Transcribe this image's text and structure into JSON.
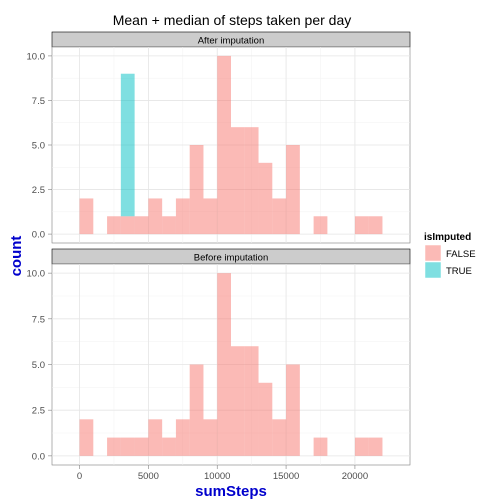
{
  "chart_data": {
    "type": "histogram",
    "title": "Mean + median of steps taken per day",
    "xlabel": "sumSteps",
    "ylabel": "count",
    "xlim": [
      -2000,
      24000
    ],
    "ylim": [
      -0.5,
      10.5
    ],
    "xticks": [
      0,
      5000,
      10000,
      15000,
      20000
    ],
    "xtick_labels": [
      "0",
      "5000",
      "10000",
      "15000",
      "20000"
    ],
    "yticks": [
      0,
      2.5,
      5,
      7.5,
      10
    ],
    "ytick_labels": [
      "0.0",
      "2.5",
      "5.0",
      "7.5",
      "10.0"
    ],
    "grid": true,
    "bin_width": 1000,
    "legend": {
      "title": "isImputed",
      "position": "right",
      "entries": [
        {
          "label": "FALSE",
          "color": "#F8766D"
        },
        {
          "label": "TRUE",
          "color": "#00BFC4"
        }
      ]
    },
    "panels": [
      {
        "label": "After imputation",
        "series": [
          {
            "name": "FALSE",
            "color": "#F8766D",
            "bars": [
              {
                "x0": 0,
                "x1": 1000,
                "count": 2
              },
              {
                "x0": 2000,
                "x1": 3000,
                "count": 1
              },
              {
                "x0": 3000,
                "x1": 4000,
                "count": 1
              },
              {
                "x0": 4000,
                "x1": 5000,
                "count": 1
              },
              {
                "x0": 5000,
                "x1": 6000,
                "count": 2
              },
              {
                "x0": 6000,
                "x1": 7000,
                "count": 1
              },
              {
                "x0": 7000,
                "x1": 8000,
                "count": 2
              },
              {
                "x0": 8000,
                "x1": 9000,
                "count": 5
              },
              {
                "x0": 9000,
                "x1": 10000,
                "count": 2
              },
              {
                "x0": 10000,
                "x1": 11000,
                "count": 10
              },
              {
                "x0": 11000,
                "x1": 12000,
                "count": 6
              },
              {
                "x0": 12000,
                "x1": 13000,
                "count": 6
              },
              {
                "x0": 13000,
                "x1": 14000,
                "count": 4
              },
              {
                "x0": 14000,
                "x1": 15000,
                "count": 2
              },
              {
                "x0": 15000,
                "x1": 16000,
                "count": 5
              },
              {
                "x0": 17000,
                "x1": 18000,
                "count": 1
              },
              {
                "x0": 20000,
                "x1": 21000,
                "count": 1
              },
              {
                "x0": 21000,
                "x1": 22000,
                "count": 1
              }
            ]
          },
          {
            "name": "TRUE",
            "color": "#00BFC4",
            "bars": [
              {
                "x0": 3000,
                "x1": 4000,
                "base": 1,
                "count": 8
              }
            ]
          }
        ]
      },
      {
        "label": "Before imputation",
        "series": [
          {
            "name": "FALSE",
            "color": "#F8766D",
            "bars": [
              {
                "x0": 0,
                "x1": 1000,
                "count": 2
              },
              {
                "x0": 2000,
                "x1": 3000,
                "count": 1
              },
              {
                "x0": 3000,
                "x1": 4000,
                "count": 1
              },
              {
                "x0": 4000,
                "x1": 5000,
                "count": 1
              },
              {
                "x0": 5000,
                "x1": 6000,
                "count": 2
              },
              {
                "x0": 6000,
                "x1": 7000,
                "count": 1
              },
              {
                "x0": 7000,
                "x1": 8000,
                "count": 2
              },
              {
                "x0": 8000,
                "x1": 9000,
                "count": 5
              },
              {
                "x0": 9000,
                "x1": 10000,
                "count": 2
              },
              {
                "x0": 10000,
                "x1": 11000,
                "count": 10
              },
              {
                "x0": 11000,
                "x1": 12000,
                "count": 6
              },
              {
                "x0": 12000,
                "x1": 13000,
                "count": 6
              },
              {
                "x0": 13000,
                "x1": 14000,
                "count": 4
              },
              {
                "x0": 14000,
                "x1": 15000,
                "count": 2
              },
              {
                "x0": 15000,
                "x1": 16000,
                "count": 5
              },
              {
                "x0": 17000,
                "x1": 18000,
                "count": 1
              },
              {
                "x0": 20000,
                "x1": 21000,
                "count": 1
              },
              {
                "x0": 21000,
                "x1": 22000,
                "count": 1
              }
            ]
          }
        ]
      }
    ]
  }
}
